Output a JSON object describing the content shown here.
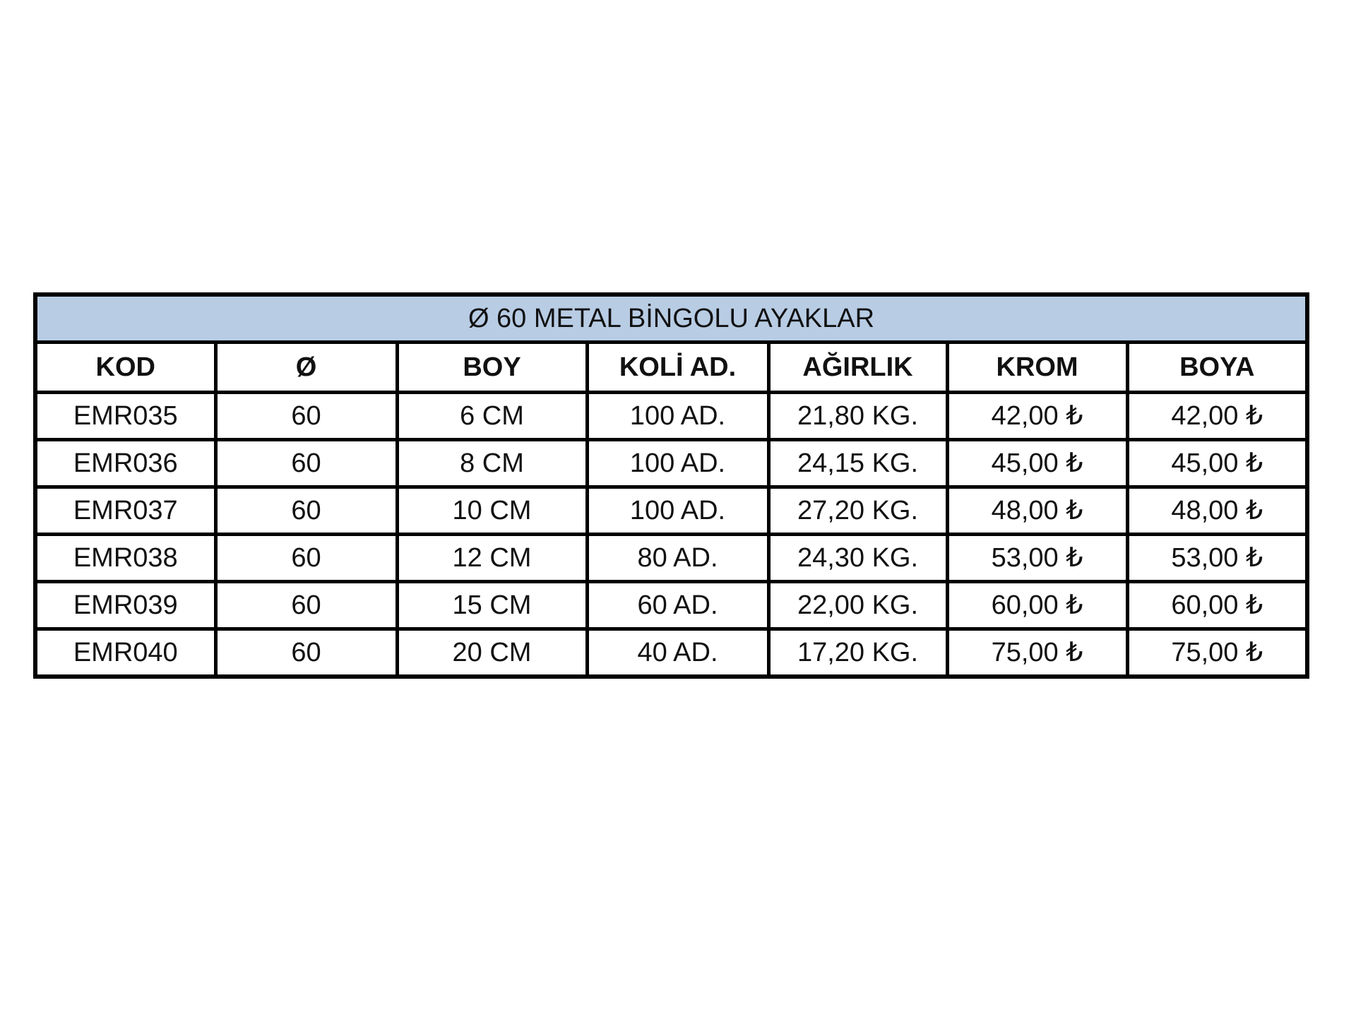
{
  "title": "Ø 60 METAL BİNGOLU AYAKLAR",
  "columns": [
    "KOD",
    "Ø",
    "BOY",
    "KOLİ AD.",
    "AĞIRLIK",
    "KROM",
    "BOYA"
  ],
  "rows": [
    [
      "EMR035",
      "60",
      "6 CM",
      "100 AD.",
      "21,80 KG.",
      "42,00 ₺",
      "42,00 ₺"
    ],
    [
      "EMR036",
      "60",
      "8 CM",
      "100 AD.",
      "24,15 KG.",
      "45,00 ₺",
      "45,00 ₺"
    ],
    [
      "EMR037",
      "60",
      "10 CM",
      "100 AD.",
      "27,20 KG.",
      "48,00 ₺",
      "48,00 ₺"
    ],
    [
      "EMR038",
      "60",
      "12 CM",
      "80 AD.",
      "24,30 KG.",
      "53,00 ₺",
      "53,00 ₺"
    ],
    [
      "EMR039",
      "60",
      "15 CM",
      "60 AD.",
      "22,00 KG.",
      "60,00 ₺",
      "60,00 ₺"
    ],
    [
      "EMR040",
      "60",
      "20 CM",
      "40 AD.",
      "17,20 KG.",
      "75,00 ₺",
      "75,00 ₺"
    ]
  ],
  "colors": {
    "title_background": "#b8cce4",
    "border": "#000000"
  }
}
